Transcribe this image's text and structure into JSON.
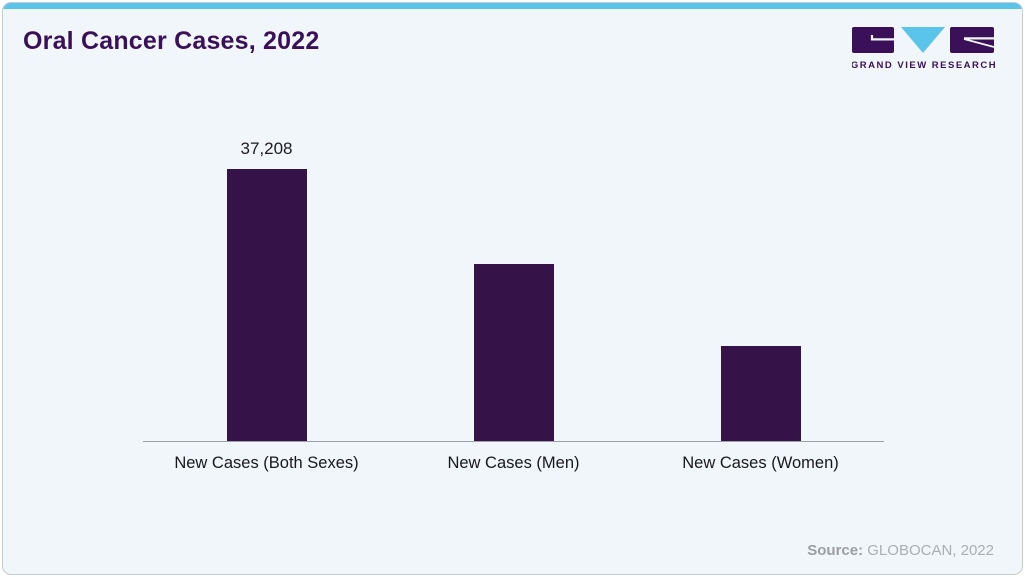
{
  "header": {
    "title": "Oral Cancer Cases, 2022",
    "logo_text": "GRAND VIEW RESEARCH"
  },
  "footer": {
    "source_label": "Source:",
    "source_value": "GLOBOCAN, 2022"
  },
  "colors": {
    "accent_top_bar": "#5bc4ea",
    "bar_fill": "#351349",
    "title_text": "#3a1058",
    "card_background": "#f1f6fa",
    "card_border": "#c3ccd3",
    "axis_line": "#9ba1a7",
    "value_label_text": "#1c1c1e",
    "category_label_text": "#17181b",
    "source_text": "#abaeb3",
    "logo_purple": "#3a1058",
    "logo_blue": "#5bc4ea"
  },
  "chart_data": {
    "type": "bar",
    "title": "Oral Cancer Cases, 2022",
    "categories": [
      "New Cases (Both Sexes)",
      "New Cases (Men)",
      "New Cases (Women)"
    ],
    "values": [
      37208,
      24260,
      13085
    ],
    "data_labels": [
      "37,208",
      "",
      ""
    ],
    "xlabel": "",
    "ylabel": "",
    "ylim": [
      0,
      37208
    ],
    "grid": false,
    "legend": false,
    "y_axis_visible": false,
    "source": "GLOBOCAN, 2022"
  }
}
